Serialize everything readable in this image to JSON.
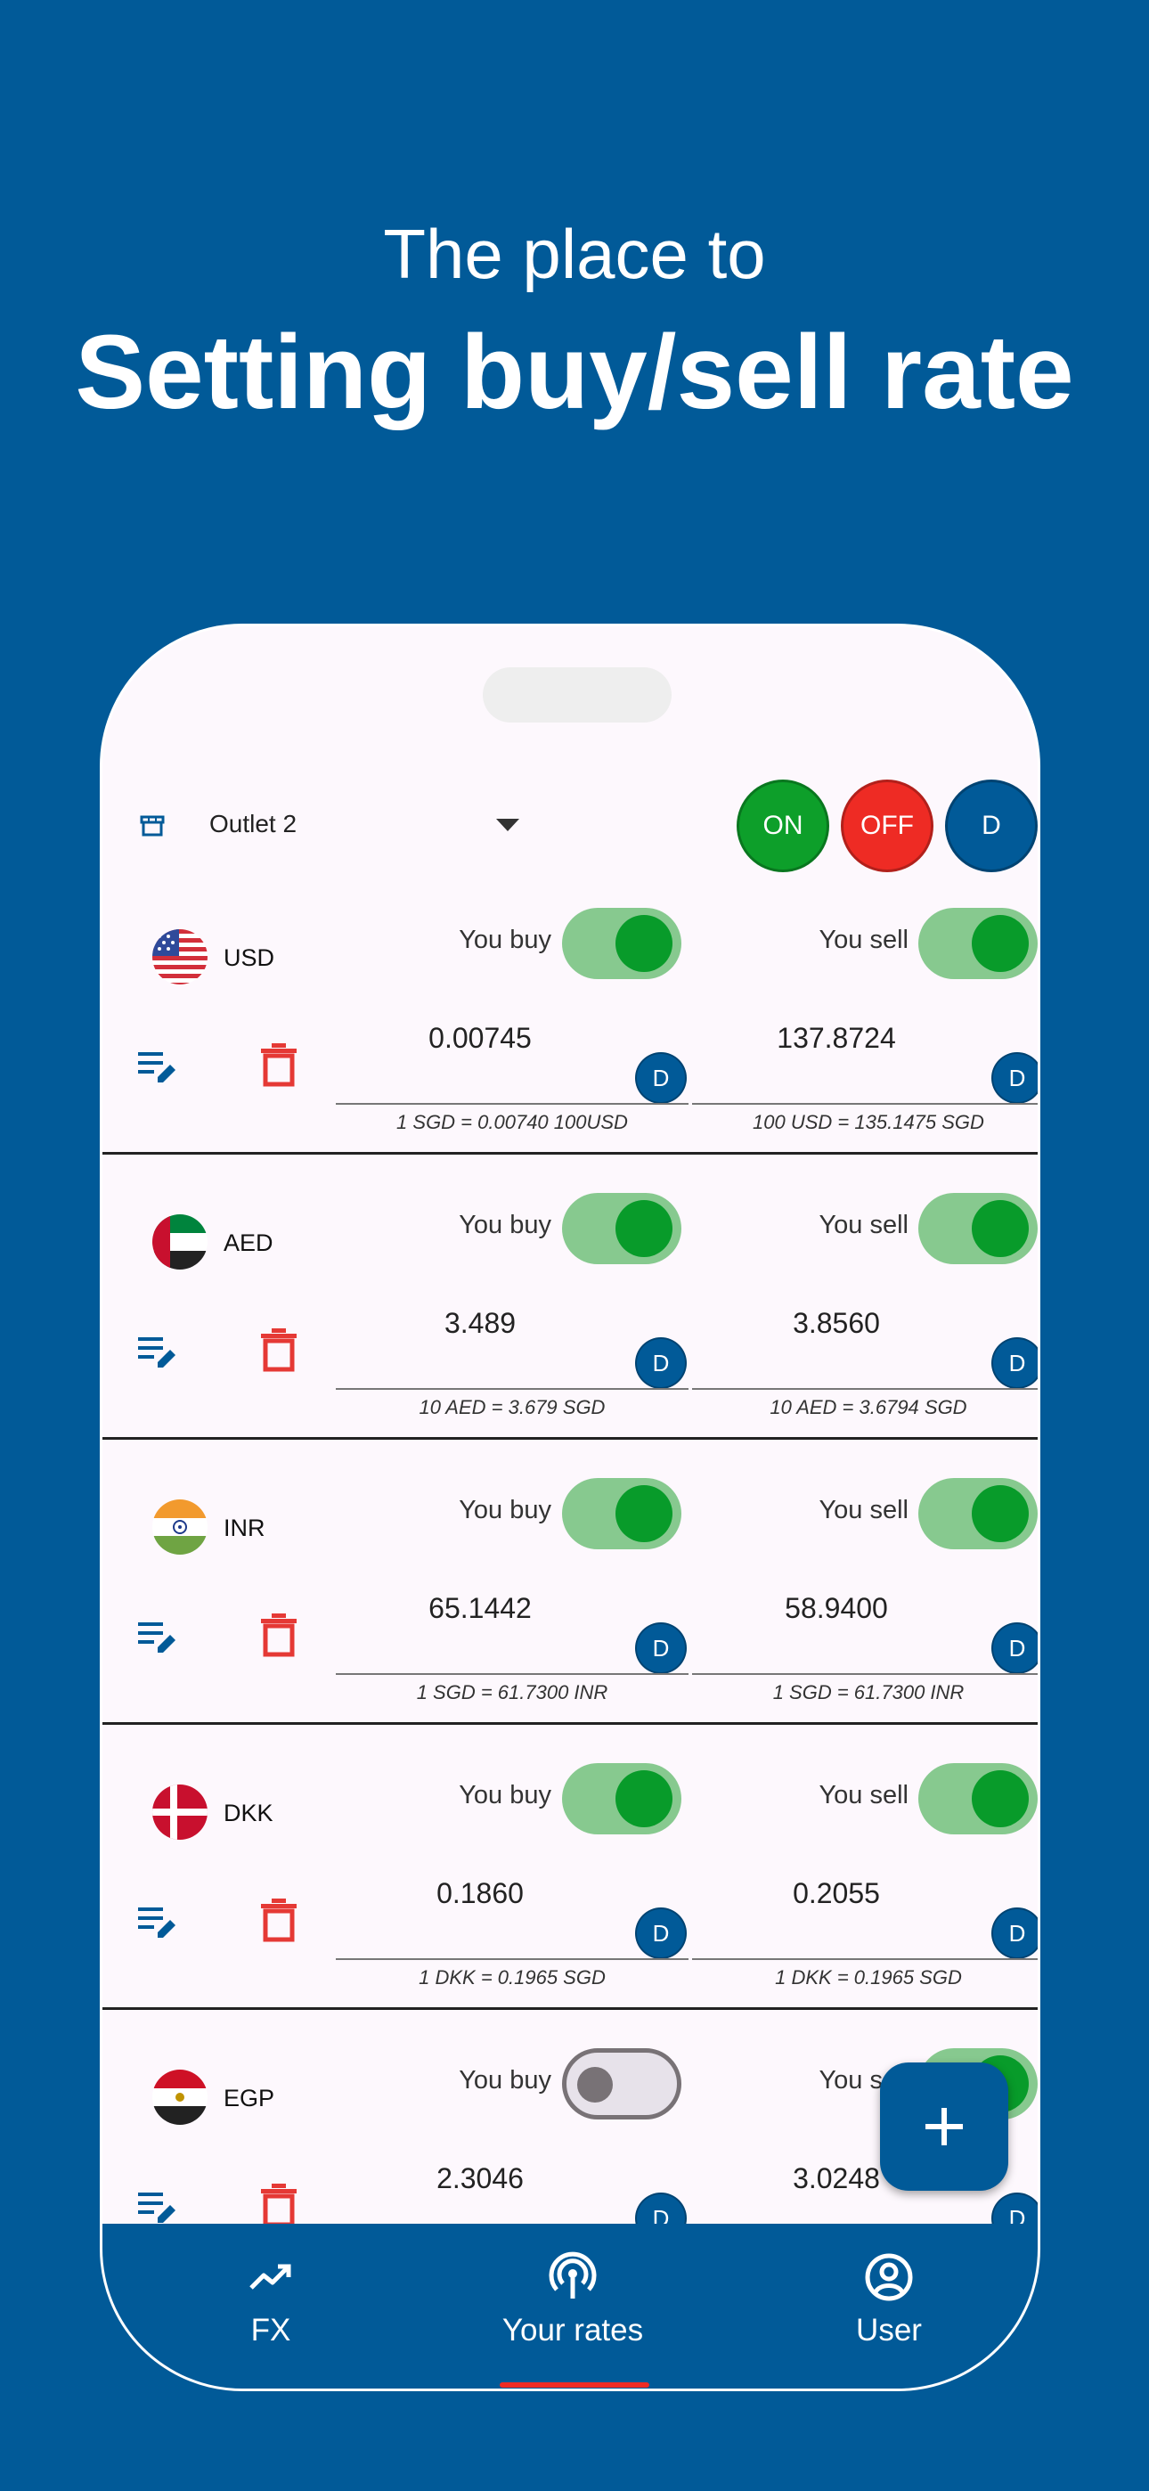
{
  "promo": {
    "subtitle": "The place to",
    "title": "Setting buy/sell rate"
  },
  "topbar": {
    "outlet_icon": "store-icon",
    "outlet_selected": "Outlet 2",
    "on_label": "ON",
    "off_label": "OFF",
    "d_label": "D",
    "colors": {
      "on": "#0D9F2A",
      "off": "#EE2B24",
      "d": "#015A98"
    }
  },
  "rates": [
    {
      "code": "USD",
      "flag": "us-flag-icon",
      "buy_label": "You buy",
      "buy_enabled": true,
      "buy_value": "0.00745",
      "buy_hint": "1 SGD = 0.00740 100USD",
      "sell_label": "You sell",
      "sell_enabled": true,
      "sell_value": "137.8724",
      "sell_hint": "100 USD = 135.1475 SGD",
      "d_label": "D"
    },
    {
      "code": "AED",
      "flag": "uae-flag-icon",
      "buy_label": "You buy",
      "buy_enabled": true,
      "buy_value": "3.489",
      "buy_hint": "10 AED = 3.679 SGD",
      "sell_label": "You sell",
      "sell_enabled": true,
      "sell_value": "3.8560",
      "sell_hint": "10 AED = 3.6794 SGD",
      "d_label": "D"
    },
    {
      "code": "INR",
      "flag": "india-flag-icon",
      "buy_label": "You buy",
      "buy_enabled": true,
      "buy_value": "65.1442",
      "buy_hint": "1 SGD = 61.7300 INR",
      "sell_label": "You sell",
      "sell_enabled": true,
      "sell_value": "58.9400",
      "sell_hint": "1 SGD = 61.7300 INR",
      "d_label": "D"
    },
    {
      "code": "DKK",
      "flag": "denmark-flag-icon",
      "buy_label": "You buy",
      "buy_enabled": true,
      "buy_value": "0.1860",
      "buy_hint": "1 DKK = 0.1965 SGD",
      "sell_label": "You sell",
      "sell_enabled": true,
      "sell_value": "0.2055",
      "sell_hint": "1 DKK = 0.1965 SGD",
      "d_label": "D"
    },
    {
      "code": "EGP",
      "flag": "egypt-flag-icon",
      "buy_label": "You buy",
      "buy_enabled": false,
      "buy_value": "2.3046",
      "buy_hint": "",
      "sell_label": "You sell",
      "sell_enabled": true,
      "sell_value": "3.0248",
      "sell_hint": "",
      "d_label": "D"
    }
  ],
  "fab": {
    "icon": "plus-icon"
  },
  "nav": {
    "items": [
      {
        "label": "FX",
        "icon": "trending-up-icon"
      },
      {
        "label": "Your rates",
        "icon": "broadcast-icon"
      },
      {
        "label": "User",
        "icon": "user-circle-icon"
      }
    ],
    "active_index": 1,
    "indicator_color": "#EE2B24"
  }
}
